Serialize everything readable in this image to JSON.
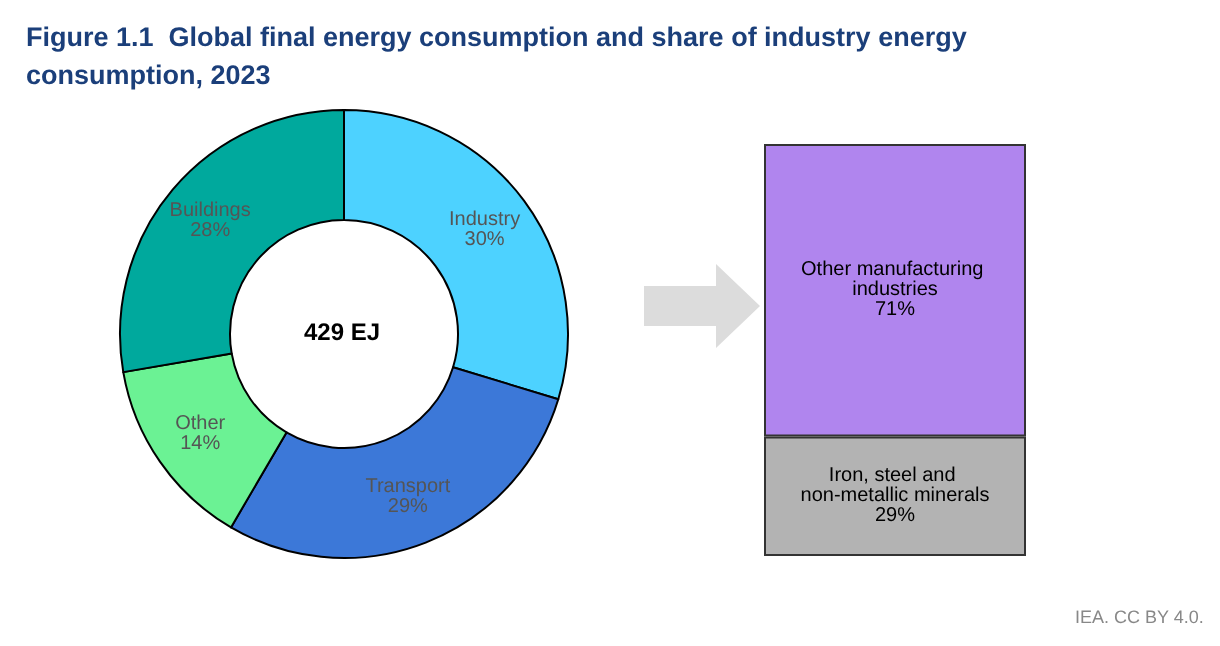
{
  "chart_data": [
    {
      "type": "donut",
      "title": "Figure 1.1  Global final energy consumption and share of industry energy consumption, 2023",
      "categories": [
        "Industry",
        "Transport",
        "Other",
        "Buildings"
      ],
      "values": [
        30,
        29,
        14,
        28
      ],
      "colors": [
        "#4dd2ff",
        "#3c78d8",
        "#6bf294",
        "#00a99d"
      ],
      "value_labels": [
        "30%",
        "29%",
        "14%",
        "28%"
      ],
      "annotations": [
        "429 EJ"
      ]
    },
    {
      "type": "bar",
      "stacked": true,
      "categories": [
        null
      ],
      "ylim": [
        0,
        100
      ],
      "series": [
        {
          "name": "Iron, steel and non-metallic minerals",
          "color": "#b3b3b3",
          "values": [
            29
          ],
          "value_labels": [
            "29%"
          ]
        },
        {
          "name": "Other manufacturing industries",
          "color": "#b085ee",
          "values": [
            71
          ],
          "value_labels": [
            "71%"
          ]
        }
      ],
      "annotations": [
        "IEA. CC BY 4.0."
      ]
    }
  ]
}
